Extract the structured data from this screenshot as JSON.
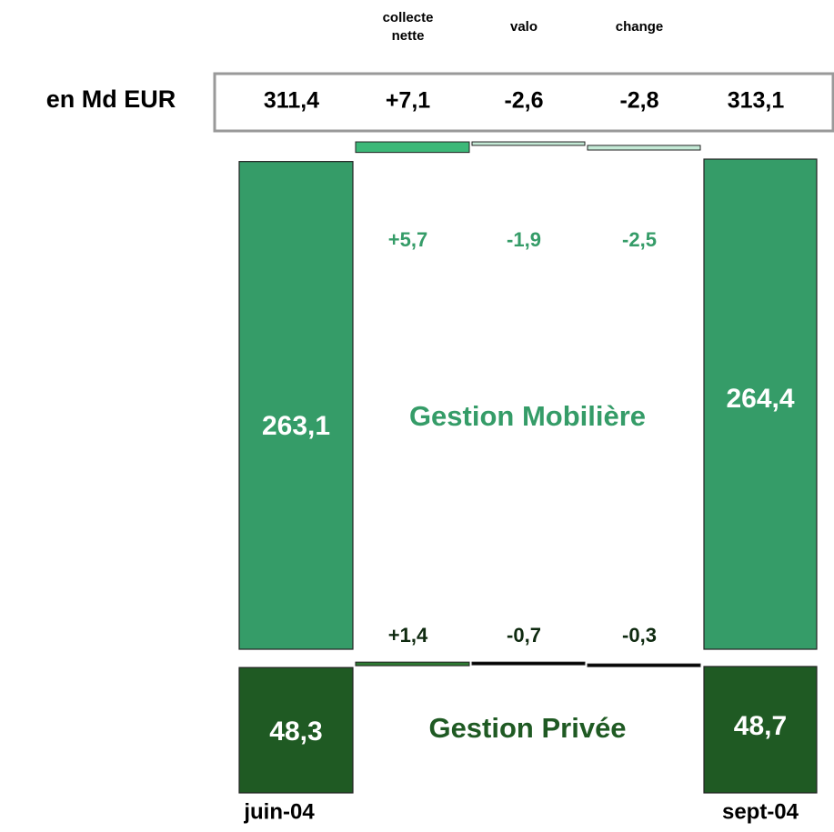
{
  "chart_data": {
    "type": "waterfall",
    "unit_label": "en Md EUR",
    "steps": [
      "collecte nette",
      "valo",
      "change"
    ],
    "start_label": "juin-04",
    "end_label": "sept-04",
    "totals": {
      "values": [
        311.4,
        7.1,
        -2.6,
        -2.8,
        313.1
      ],
      "value_labels": [
        "311,4",
        "+7,1",
        "-2,6",
        "-2,8",
        "313,1"
      ]
    },
    "series": [
      {
        "name": "Gestion Mobilière",
        "color": "#359c68",
        "increase_color": "#3cb878",
        "decrease_color": "#c4ead6",
        "start": 263.1,
        "start_label": "263,1",
        "end": 264.4,
        "end_label": "264,4",
        "changes": [
          5.7,
          -1.9,
          -2.5
        ],
        "change_labels": [
          "+5,7",
          "-1,9",
          "-2,5"
        ]
      },
      {
        "name": "Gestion Privée",
        "color": "#1f5a23",
        "increase_color": "#2e7a33",
        "decrease_color": "#000000",
        "start": 48.3,
        "start_label": "48,3",
        "end": 48.7,
        "end_label": "48,7",
        "changes": [
          1.4,
          -0.7,
          -0.3
        ],
        "change_labels": [
          "+1,4",
          "-0,7",
          "-0,3"
        ]
      }
    ]
  }
}
